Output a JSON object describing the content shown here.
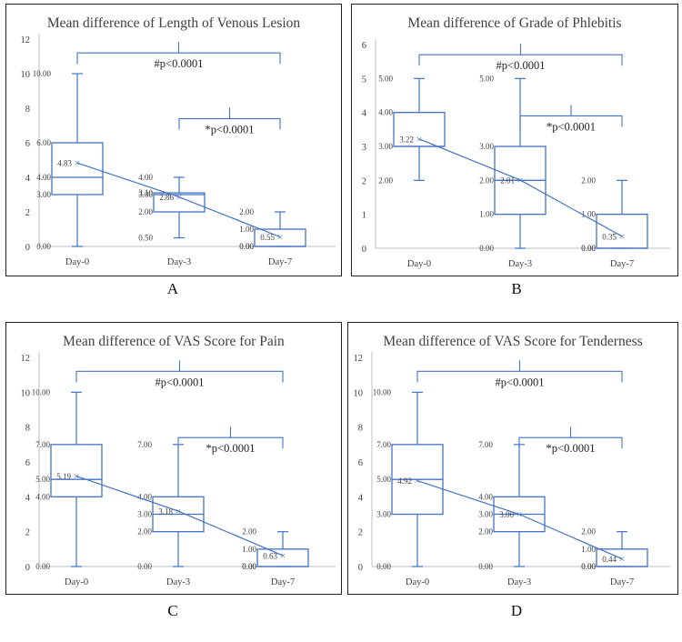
{
  "chart_data": [
    {
      "type": "box",
      "panel_label": "A",
      "title": "Mean difference of Length of Venous Lesion",
      "ylim": [
        0,
        12
      ],
      "yticks": [
        "0",
        "2",
        "4",
        "6",
        "8",
        "10",
        "12"
      ],
      "categories": [
        "Day-0",
        "Day-3",
        "Day-7"
      ],
      "boxes": [
        {
          "category": "Day-0",
          "min": 0,
          "q1": 3,
          "median": 4,
          "q3": 6,
          "max": 10,
          "mean": 4.83,
          "labels": [
            "10.00",
            "6.00",
            "4.00",
            "3.00",
            "0.00"
          ],
          "mean_label": "4.83"
        },
        {
          "category": "Day-3",
          "min": 0.5,
          "q1": 2,
          "median": 3,
          "q3": 3.1,
          "max": 4,
          "mean": 2.86,
          "labels": [
            "4.00",
            "3.10",
            "3.00",
            "2.00",
            "0.50"
          ],
          "mean_label": "2.86"
        },
        {
          "category": "Day-7",
          "min": 0,
          "q1": 0,
          "median": 0,
          "q3": 1,
          "max": 2,
          "mean": 0.55,
          "labels": [
            "2.00",
            "1.00",
            "0.00",
            "0.00"
          ],
          "mean_label": "0.55"
        }
      ],
      "annotations": [
        {
          "text": "#p<0.0001",
          "from": "Day-0",
          "to": "Day-7",
          "y": 11.2
        },
        {
          "text": "*p<0.0001",
          "from": "Day-3",
          "to": "Day-7",
          "y": 7.4
        }
      ]
    },
    {
      "type": "box",
      "panel_label": "B",
      "title": "Mean difference of Grade of Phlebitis",
      "ylim": [
        0,
        6
      ],
      "yticks": [
        "0",
        "1",
        "2",
        "3",
        "4",
        "5",
        "6"
      ],
      "categories": [
        "Day-0",
        "Day-3",
        "Day-7"
      ],
      "boxes": [
        {
          "category": "Day-0",
          "min": 2,
          "q1": 3,
          "median": 3,
          "q3": 4,
          "max": 5,
          "mean": 3.22,
          "labels": [
            "5.00",
            "4.00",
            "3.00",
            "2.00"
          ],
          "mean_label": "3.22"
        },
        {
          "category": "Day-3",
          "min": 0,
          "q1": 1,
          "median": 2,
          "q3": 3,
          "max": 5,
          "mean": 2.01,
          "labels": [
            "5.00",
            "3.00",
            "2.00",
            "1.00",
            "0.00"
          ],
          "mean_label": "2.01"
        },
        {
          "category": "Day-7",
          "min": 0,
          "q1": 0,
          "median": 0,
          "q3": 1,
          "max": 2,
          "mean": 0.35,
          "labels": [
            "2.00",
            "1.00",
            "0.00",
            "0.00"
          ],
          "mean_label": "0.35"
        }
      ],
      "annotations": [
        {
          "text": "#p<0.0001",
          "from": "Day-0",
          "to": "Day-7",
          "y": 5.7
        },
        {
          "text": "*p<0.0001",
          "from": "Day-3",
          "to": "Day-7",
          "y": 3.9
        }
      ]
    },
    {
      "type": "box",
      "panel_label": "C",
      "title": "Mean difference of VAS Score for Pain",
      "ylim": [
        0,
        12
      ],
      "yticks": [
        "0",
        "2",
        "4",
        "6",
        "8",
        "10",
        "12"
      ],
      "categories": [
        "Day-0",
        "Day-3",
        "Day-7"
      ],
      "boxes": [
        {
          "category": "Day-0",
          "min": 0,
          "q1": 4,
          "median": 5,
          "q3": 7,
          "max": 10,
          "mean": 5.19,
          "labels": [
            "10.00",
            "7.00",
            "5.00",
            "4.00",
            "0.00"
          ],
          "mean_label": "5.19"
        },
        {
          "category": "Day-3",
          "min": 0,
          "q1": 2,
          "median": 3,
          "q3": 4,
          "max": 7,
          "mean": 3.18,
          "labels": [
            "7.00",
            "4.00",
            "3.00",
            "2.00",
            "0.00"
          ],
          "mean_label": "3.18"
        },
        {
          "category": "Day-7",
          "min": 0,
          "q1": 0,
          "median": 0,
          "q3": 1,
          "max": 2,
          "mean": 0.63,
          "labels": [
            "2.00",
            "1.00",
            "0.00",
            "0.00"
          ],
          "mean_label": "0.63"
        }
      ],
      "annotations": [
        {
          "text": "#p<0.0001",
          "from": "Day-0",
          "to": "Day-7",
          "y": 11.2
        },
        {
          "text": "*p<0.0001",
          "from": "Day-3",
          "to": "Day-7",
          "y": 7.4
        }
      ]
    },
    {
      "type": "box",
      "panel_label": "D",
      "title": "Mean difference of VAS Score for Tenderness",
      "ylim": [
        0,
        12
      ],
      "yticks": [
        "0",
        "2",
        "4",
        "6",
        "8",
        "10",
        "12"
      ],
      "categories": [
        "Day-0",
        "Day-3",
        "Day-7"
      ],
      "boxes": [
        {
          "category": "Day-0",
          "min": 0,
          "q1": 3,
          "median": 5,
          "q3": 7,
          "max": 10,
          "mean": 4.92,
          "labels": [
            "10.00",
            "7.00",
            "5.00",
            "3.00",
            "0.00"
          ],
          "mean_label": "4.92"
        },
        {
          "category": "Day-3",
          "min": 0,
          "q1": 2,
          "median": 3,
          "q3": 4,
          "max": 7,
          "mean": 3.0,
          "labels": [
            "7.00",
            "4.00",
            "3.00",
            "2.00",
            "0.00"
          ],
          "mean_label": "3.00"
        },
        {
          "category": "Day-7",
          "min": 0,
          "q1": 0,
          "median": 0,
          "q3": 1,
          "max": 2,
          "mean": 0.44,
          "labels": [
            "2.00",
            "1.00",
            "0.00",
            "0.00"
          ],
          "mean_label": "0.44"
        }
      ],
      "annotations": [
        {
          "text": "#p<0.0001",
          "from": "Day-0",
          "to": "Day-7",
          "y": 11.2
        },
        {
          "text": "*p<0.0001",
          "from": "Day-3",
          "to": "Day-7",
          "y": 7.4
        }
      ]
    }
  ],
  "colors": {
    "series": "#4472c4",
    "axis": "#bfbfbf",
    "text": "#404040",
    "title": "#404040"
  }
}
